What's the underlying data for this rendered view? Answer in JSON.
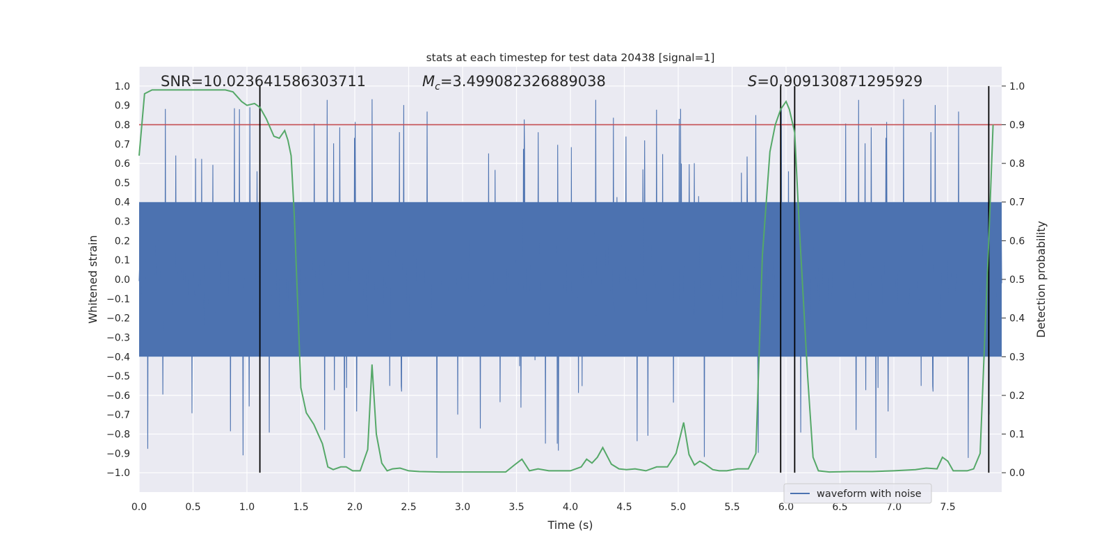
{
  "chart_data": {
    "type": "line",
    "title": "stats at each timestep for test data 20438 [signal=1]",
    "xlabel": "Time (s)",
    "ylabel_left": "Whitened strain",
    "ylabel_right": "Detection probability",
    "xlim": [
      0,
      8
    ],
    "ylim_left": [
      -1.1,
      1.1
    ],
    "ylim_right": [
      -0.05,
      1.05
    ],
    "x_ticks": [
      "0.0",
      "0.5",
      "1.0",
      "1.5",
      "2.0",
      "2.5",
      "3.0",
      "3.5",
      "4.0",
      "4.5",
      "5.0",
      "5.5",
      "6.0",
      "6.5",
      "7.0",
      "7.5"
    ],
    "y_ticks_left": [
      "1.0",
      "0.9",
      "0.8",
      "0.7",
      "0.6",
      "0.5",
      "0.4",
      "0.3",
      "0.2",
      "0.1",
      "0.0",
      "−0.1",
      "−0.2",
      "−0.3",
      "−0.4",
      "−0.5",
      "−0.6",
      "−0.7",
      "−0.8",
      "−0.9",
      "−1.0"
    ],
    "y_ticks_right": [
      "1.0",
      "0.9",
      "0.8",
      "0.7",
      "0.6",
      "0.5",
      "0.4",
      "0.3",
      "0.2",
      "0.1",
      "0.0"
    ],
    "annotations": {
      "snr": "SNR=10.023641586303711",
      "mc": "=3.499082326889038",
      "s": "=0.909130871295929"
    },
    "threshold": 0.9,
    "vertical_lines": [
      1.12,
      5.95,
      6.08,
      7.88
    ],
    "legend": {
      "label": "waveform with noise",
      "position": "lower-right"
    },
    "series": [
      {
        "name": "waveform with noise",
        "axis": "left",
        "color": "#4c72b0",
        "envelope": "noise band ±0.4 with spikes up to ±0.97"
      },
      {
        "name": "Detection probability",
        "axis": "right",
        "color": "#55a868",
        "x": [
          0.0,
          0.05,
          0.12,
          0.2,
          0.3,
          0.4,
          0.5,
          0.6,
          0.7,
          0.8,
          0.87,
          0.95,
          1.0,
          1.07,
          1.12,
          1.18,
          1.25,
          1.3,
          1.35,
          1.38,
          1.41,
          1.44,
          1.47,
          1.5,
          1.55,
          1.62,
          1.7,
          1.75,
          1.8,
          1.87,
          1.92,
          1.98,
          2.05,
          2.12,
          2.16,
          2.2,
          2.25,
          2.3,
          2.35,
          2.42,
          2.5,
          2.6,
          2.8,
          3.0,
          3.2,
          3.4,
          3.48,
          3.55,
          3.62,
          3.7,
          3.8,
          3.9,
          4.0,
          4.1,
          4.15,
          4.2,
          4.25,
          4.3,
          4.38,
          4.45,
          4.52,
          4.6,
          4.7,
          4.8,
          4.9,
          4.98,
          5.05,
          5.1,
          5.15,
          5.2,
          5.25,
          5.32,
          5.38,
          5.45,
          5.55,
          5.65,
          5.72,
          5.78,
          5.85,
          5.9,
          5.95,
          6.0,
          6.03,
          6.08,
          6.12,
          6.16,
          6.2,
          6.25,
          6.3,
          6.4,
          6.6,
          6.8,
          7.0,
          7.2,
          7.3,
          7.4,
          7.45,
          7.5,
          7.55,
          7.62,
          7.68,
          7.74,
          7.8,
          7.85,
          7.88,
          7.92
        ],
        "y": [
          0.82,
          0.98,
          0.99,
          0.99,
          0.99,
          0.99,
          0.99,
          0.99,
          0.99,
          0.99,
          0.985,
          0.96,
          0.95,
          0.955,
          0.945,
          0.915,
          0.87,
          0.865,
          0.885,
          0.86,
          0.82,
          0.66,
          0.44,
          0.22,
          0.155,
          0.125,
          0.075,
          0.015,
          0.008,
          0.015,
          0.015,
          0.005,
          0.005,
          0.06,
          0.28,
          0.1,
          0.025,
          0.005,
          0.01,
          0.012,
          0.005,
          0.003,
          0.002,
          0.002,
          0.002,
          0.002,
          0.02,
          0.035,
          0.005,
          0.01,
          0.005,
          0.005,
          0.005,
          0.015,
          0.035,
          0.025,
          0.04,
          0.065,
          0.022,
          0.01,
          0.008,
          0.01,
          0.005,
          0.015,
          0.015,
          0.05,
          0.13,
          0.047,
          0.02,
          0.03,
          0.022,
          0.008,
          0.005,
          0.005,
          0.01,
          0.01,
          0.05,
          0.56,
          0.83,
          0.9,
          0.94,
          0.96,
          0.94,
          0.88,
          0.65,
          0.45,
          0.25,
          0.04,
          0.005,
          0.002,
          0.003,
          0.003,
          0.005,
          0.008,
          0.012,
          0.01,
          0.04,
          0.03,
          0.005,
          0.005,
          0.005,
          0.01,
          0.05,
          0.4,
          0.6,
          0.9
        ]
      }
    ]
  }
}
